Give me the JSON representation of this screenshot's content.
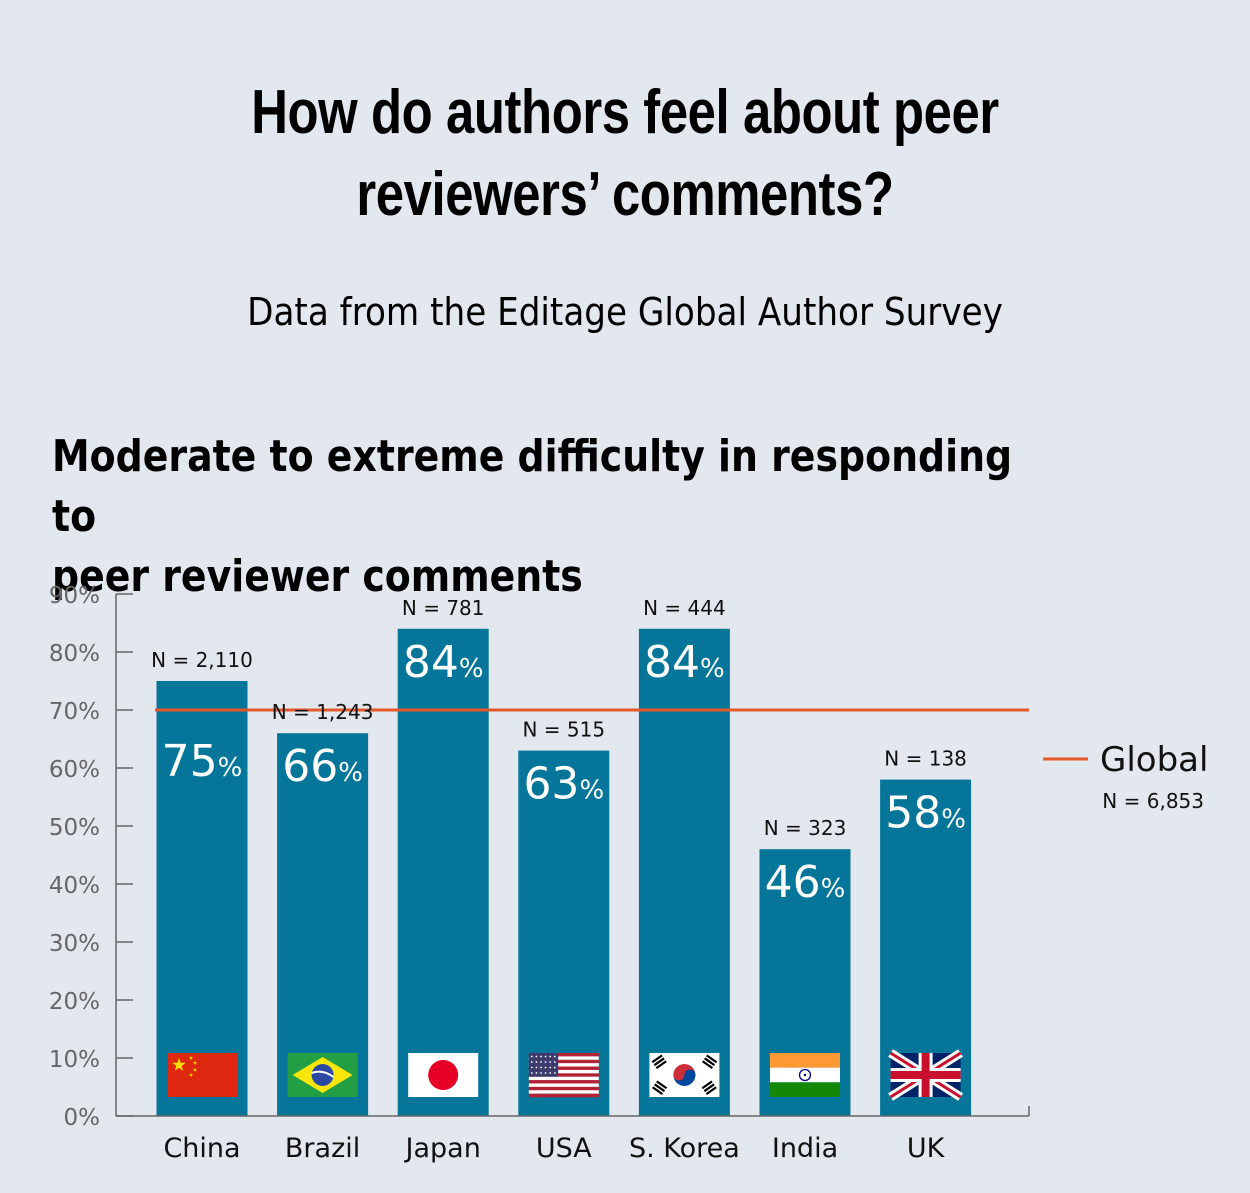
{
  "header": {
    "title_line1": "How do authors feel about peer",
    "title_line2": "reviewers’ comments?",
    "subtitle": "Data from the Editage Global Author Survey"
  },
  "chart_data": {
    "type": "bar",
    "title_line1": "Moderate to extreme difficulty in responding to",
    "title_line2": "peer reviewer comments",
    "categories": [
      "China",
      "Brazil",
      "Japan",
      "USA",
      "S. Korea",
      "India",
      "UK"
    ],
    "values": [
      75,
      66,
      84,
      63,
      84,
      46,
      58
    ],
    "value_unit": "%",
    "sample_sizes": [
      "N = 2,110",
      "N = 1,243",
      "N = 781",
      "N = 515",
      "N = 444",
      "N = 323",
      "N = 138"
    ],
    "flags": [
      "china-flag-icon",
      "brazil-flag-icon",
      "japan-flag-icon",
      "usa-flag-icon",
      "south-korea-flag-icon",
      "india-flag-icon",
      "uk-flag-icon"
    ],
    "ylim": [
      0,
      90
    ],
    "yticks": [
      0,
      10,
      20,
      30,
      40,
      50,
      60,
      70,
      80,
      90
    ],
    "ytick_labels": [
      "0%",
      "10%",
      "20%",
      "30%",
      "40%",
      "50%",
      "60%",
      "70%",
      "80%",
      "90%"
    ],
    "reference_line": {
      "name": "Global",
      "value": 70,
      "sample_size": "N = 6,853",
      "color": "#e4582a"
    },
    "bar_color": "#05769a",
    "legend_position": "right",
    "grid": false
  }
}
